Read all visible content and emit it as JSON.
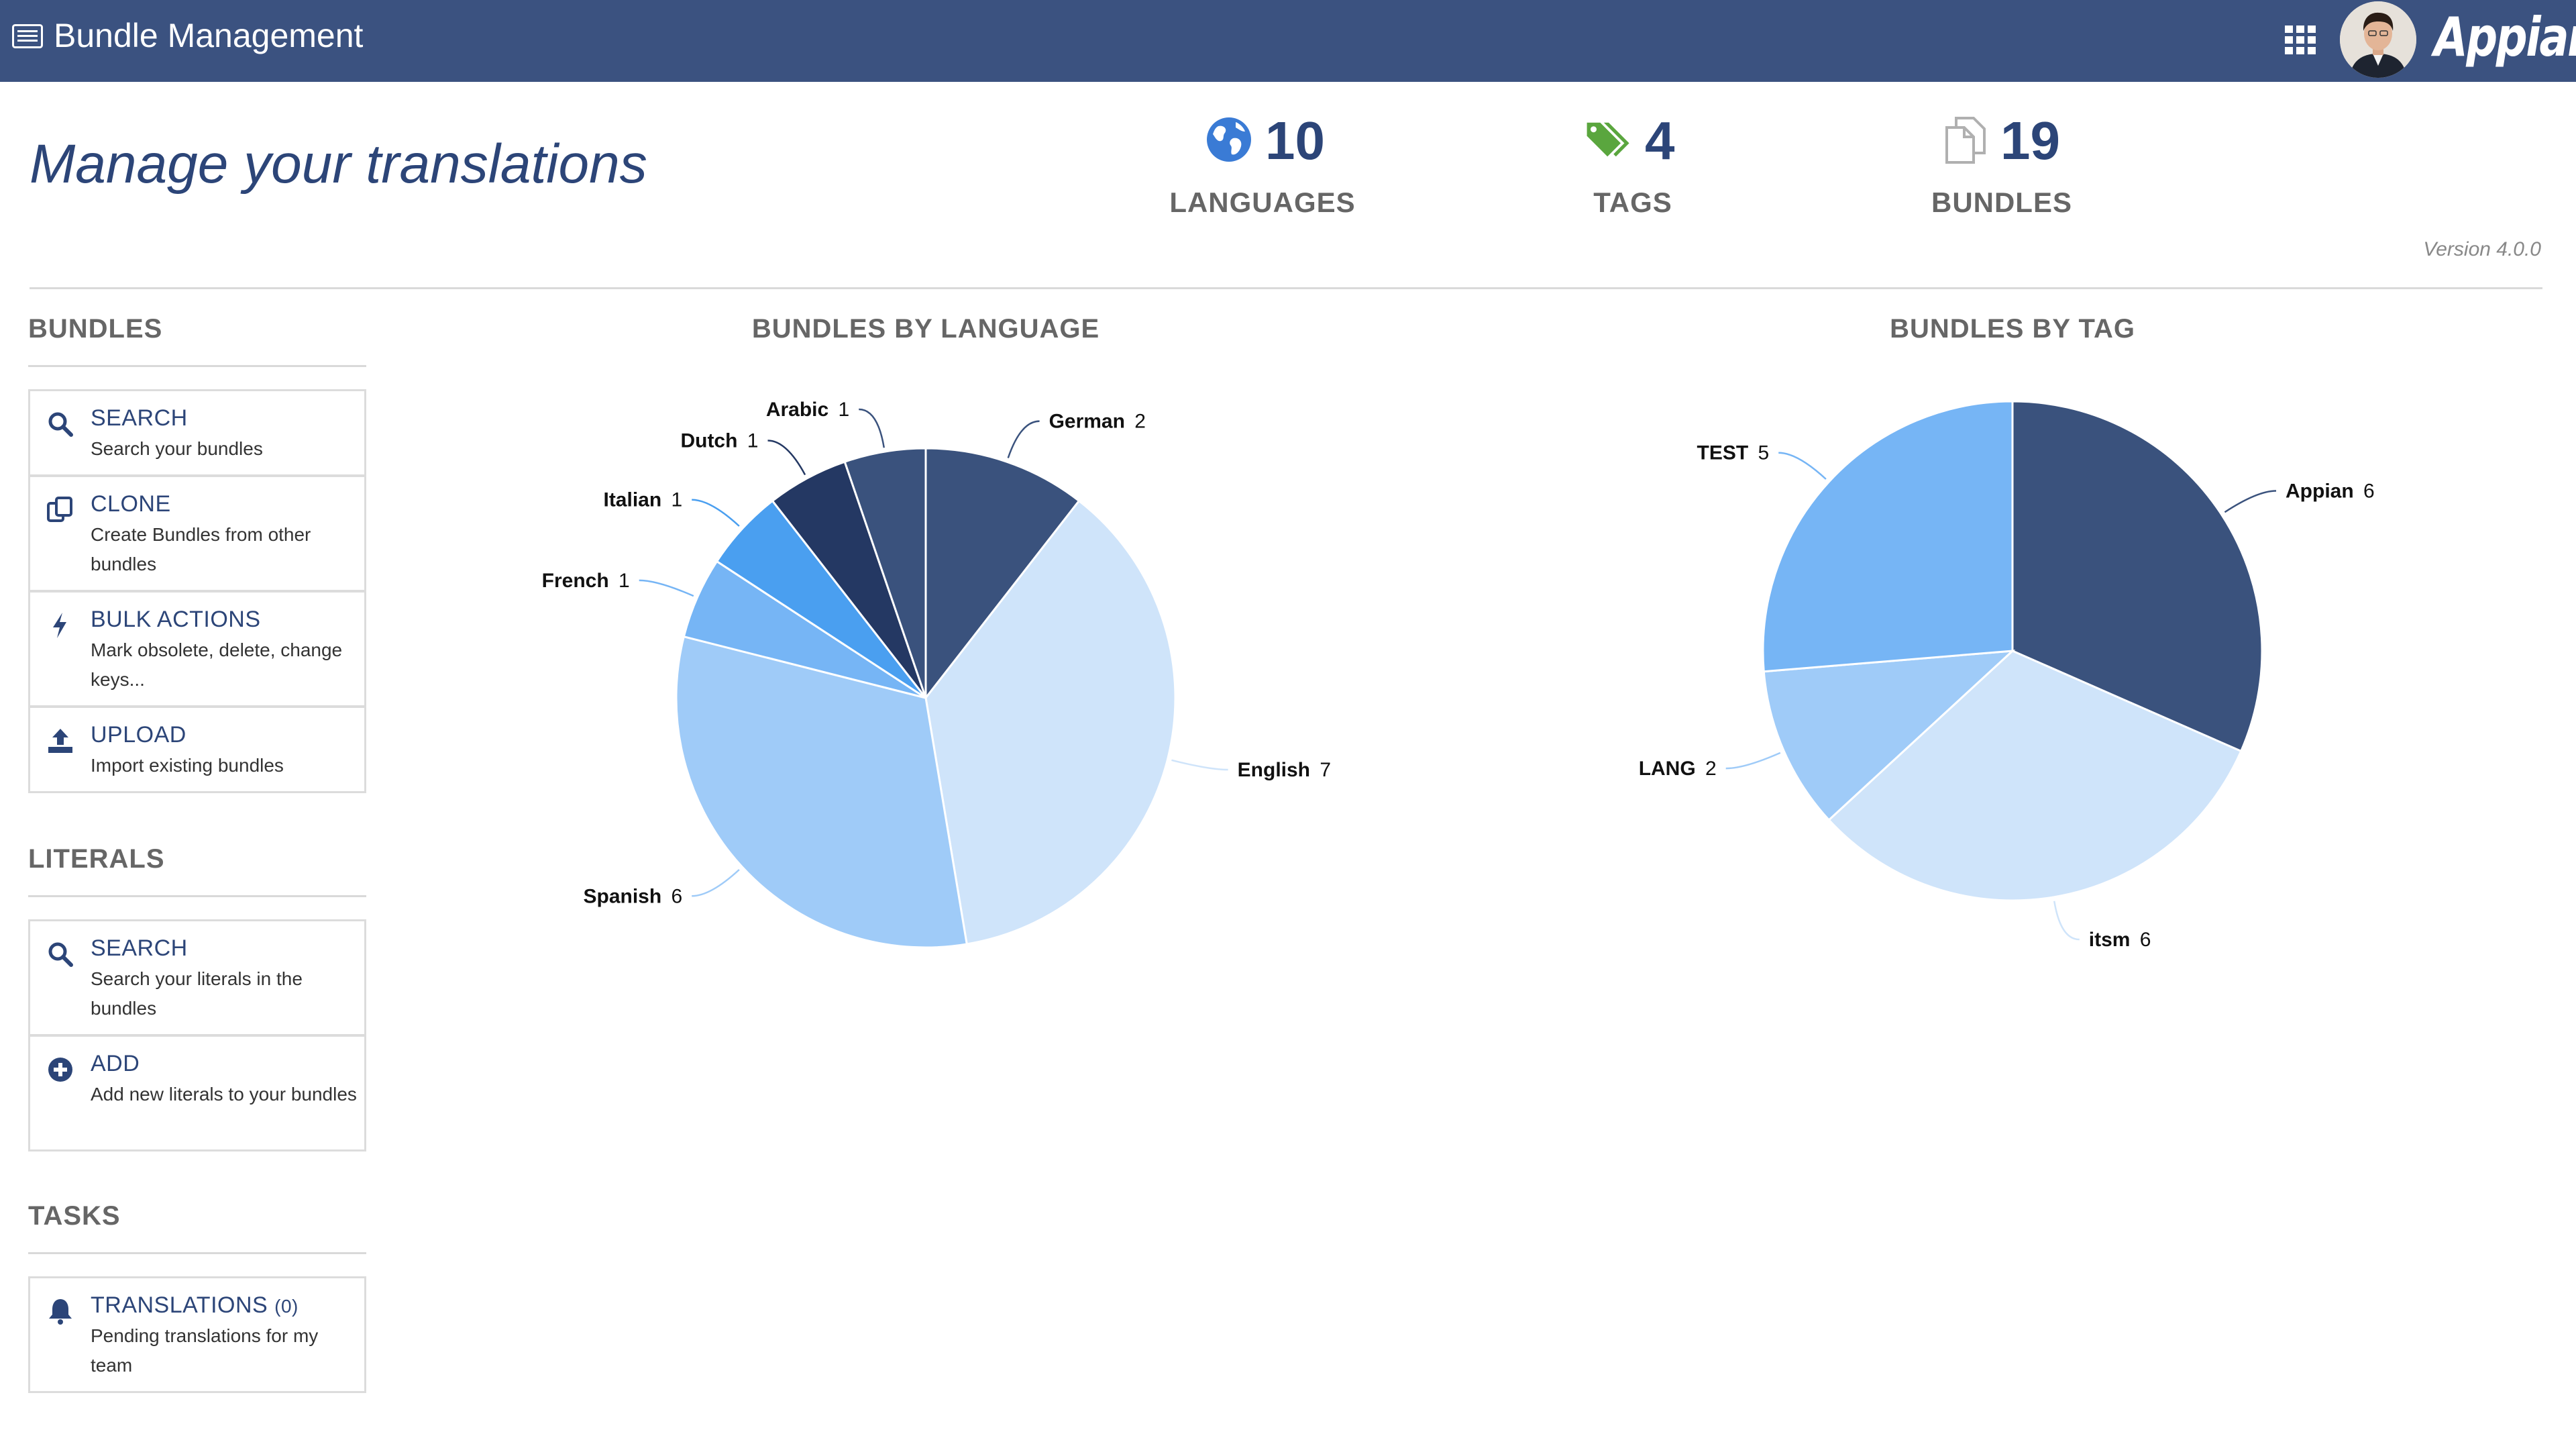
{
  "app": {
    "title": "Bundle Management",
    "brand": "Appian"
  },
  "header": {
    "page_title": "Manage your translations",
    "version": "Version 4.0.0",
    "stats": [
      {
        "icon": "globe-icon",
        "value": "10",
        "label": "LANGUAGES",
        "color": "#3a7bd5"
      },
      {
        "icon": "tags-icon",
        "value": "4",
        "label": "TAGS",
        "color": "#5aa63e"
      },
      {
        "icon": "documents-icon",
        "value": "19",
        "label": "BUNDLES",
        "color": "#aaaaaa"
      }
    ]
  },
  "sidebar": {
    "sections": [
      {
        "title": "BUNDLES",
        "cards": [
          {
            "icon": "search-icon",
            "title": "SEARCH",
            "desc": "Search your bundles"
          },
          {
            "icon": "clone-icon",
            "title": "CLONE",
            "desc": "Create Bundles from other bundles"
          },
          {
            "icon": "bolt-icon",
            "title": "BULK ACTIONS",
            "desc": "Mark obsolete, delete, change keys..."
          },
          {
            "icon": "upload-icon",
            "title": "UPLOAD",
            "desc": "Import existing bundles"
          }
        ]
      },
      {
        "title": "LITERALS",
        "cards": [
          {
            "icon": "search-icon",
            "title": "SEARCH",
            "desc": "Search your literals in the bundles"
          },
          {
            "icon": "add-circle-icon",
            "title": "ADD",
            "desc": "Add new literals to your bundles"
          }
        ]
      },
      {
        "title": "TASKS",
        "cards": [
          {
            "icon": "bell-icon",
            "title": "TRANSLATIONS",
            "count": "(0)",
            "desc": "Pending translations for my team"
          }
        ]
      }
    ]
  },
  "colors": {
    "topbar": "#3b5280",
    "accent": "#2c4578"
  },
  "chart_data": [
    {
      "type": "pie",
      "title": "BUNDLES BY LANGUAGE",
      "slices": [
        {
          "label": "German",
          "value": 2,
          "color": "#3a527d"
        },
        {
          "label": "English",
          "value": 7,
          "color": "#cfe4fa"
        },
        {
          "label": "Spanish",
          "value": 6,
          "color": "#9fcbf8"
        },
        {
          "label": "French",
          "value": 1,
          "color": "#76b5f5"
        },
        {
          "label": "Italian",
          "value": 1,
          "color": "#4a9ff0"
        },
        {
          "label": "Dutch",
          "value": 1,
          "color": "#243863"
        },
        {
          "label": "Arabic",
          "value": 1,
          "color": "#3a527d"
        }
      ]
    },
    {
      "type": "pie",
      "title": "BUNDLES BY TAG",
      "slices": [
        {
          "label": "Appian",
          "value": 6,
          "color": "#3a527d"
        },
        {
          "label": "itsm",
          "value": 6,
          "color": "#cfe4fa"
        },
        {
          "label": "LANG",
          "value": 2,
          "color": "#9fcbf8"
        },
        {
          "label": "TEST",
          "value": 5,
          "color": "#76b5f5"
        }
      ]
    }
  ]
}
